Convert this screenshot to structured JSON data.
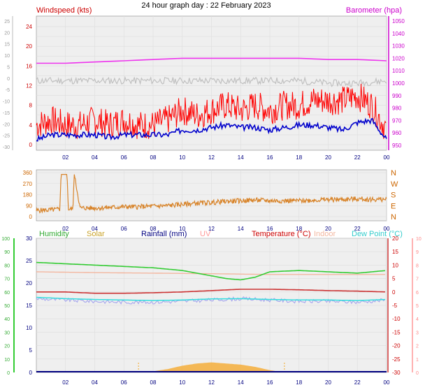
{
  "title": "24 hour graph day : 22 February 2023",
  "time_ticks": [
    "02",
    "04",
    "06",
    "08",
    "10",
    "12",
    "14",
    "16",
    "18",
    "20",
    "22",
    "00"
  ],
  "colors": {
    "wind_gust": "#ff0000",
    "wind_avg": "#0000cc",
    "wind_temp_gray": "#c0c0c0",
    "barometer": "#ee33ee",
    "direction": "#d8842a",
    "humidity": "#33cc33",
    "solar": "#f5a623",
    "rainfall": "#000080",
    "uv": "#ff9999",
    "temperature": "#cc3333",
    "indoor": "#f3b7a0",
    "dewpoint": "#33dddd",
    "apparent": "#aaaaee"
  },
  "chart_data": [
    {
      "type": "line",
      "panel": "wind",
      "labels": {
        "left": "Windspeed (kts)",
        "right": "Barometer (hpa)"
      },
      "left_ticks": [
        "24",
        "20",
        "16",
        "12",
        "8",
        "4",
        "0"
      ],
      "left_outer_ticks": [
        "25",
        "20",
        "15",
        "10",
        "5",
        "0",
        "-5",
        "-10",
        "-15",
        "-20",
        "-25",
        "-30"
      ],
      "right_ticks": [
        "1050",
        "1040",
        "1030",
        "1020",
        "1010",
        "1000",
        "990",
        "980",
        "970",
        "960",
        "950"
      ],
      "ylim_wind": [
        0,
        25
      ],
      "ylim_baro": [
        950,
        1050
      ],
      "x_hours": [
        0,
        24
      ],
      "series": [
        {
          "key": "wind_gust",
          "x": [
            0,
            1,
            2,
            3,
            4,
            5,
            6,
            7,
            8,
            9,
            10,
            11,
            12,
            13,
            14,
            15,
            16,
            17,
            18,
            19,
            20,
            21,
            22,
            23,
            24
          ],
          "values": [
            4,
            5,
            4,
            4,
            5,
            4,
            5,
            4,
            4,
            5,
            7,
            6,
            7,
            8,
            7,
            8,
            7,
            8,
            8,
            9,
            9,
            9,
            10,
            8,
            3
          ]
        },
        {
          "key": "wind_avg",
          "x": [
            0,
            1,
            2,
            3,
            4,
            5,
            6,
            7,
            8,
            9,
            10,
            11,
            12,
            13,
            14,
            15,
            16,
            17,
            18,
            19,
            20,
            21,
            22,
            23,
            24
          ],
          "values": [
            1,
            2,
            2,
            2,
            2,
            1.5,
            2,
            2,
            2,
            2,
            3,
            3,
            3.5,
            4,
            3.5,
            3.5,
            3,
            3.5,
            4,
            4,
            3.5,
            3,
            4.5,
            5,
            1
          ]
        },
        {
          "key": "barometer",
          "x": [
            0,
            2,
            4,
            6,
            8,
            10,
            12,
            14,
            16,
            18,
            20,
            22,
            24
          ],
          "values": [
            1016,
            1016,
            1017,
            1018,
            1019,
            1020,
            1020,
            1020,
            1020,
            1020,
            1019,
            1019,
            1018
          ]
        },
        {
          "key": "wind_temp_gray",
          "x": [
            0,
            2,
            4,
            6,
            8,
            10,
            12,
            14,
            16,
            18,
            20,
            22,
            24
          ],
          "values": [
            13,
            13,
            13,
            13,
            13,
            13,
            13,
            13,
            13,
            13,
            12.5,
            12.5,
            13
          ]
        }
      ]
    },
    {
      "type": "line",
      "panel": "direction",
      "left_ticks": [
        "360",
        "270",
        "180",
        "90",
        "0"
      ],
      "right_ticks": [
        "N",
        "W",
        "S",
        "E",
        "N"
      ],
      "ylim": [
        0,
        360
      ],
      "series": [
        {
          "key": "direction",
          "x": [
            0,
            1,
            1.6,
            1.7,
            2.1,
            2.2,
            2.5,
            2.6,
            3,
            4,
            5,
            6,
            7,
            8,
            9,
            10,
            11,
            12,
            13,
            14,
            15,
            16,
            17,
            18,
            19,
            20,
            21,
            22,
            23,
            24
          ],
          "values": [
            50,
            55,
            60,
            345,
            345,
            60,
            60,
            345,
            70,
            70,
            75,
            80,
            80,
            85,
            90,
            100,
            110,
            115,
            125,
            130,
            135,
            130,
            130,
            130,
            135,
            140,
            140,
            145,
            140,
            140
          ]
        }
      ]
    },
    {
      "type": "line",
      "panel": "temperature",
      "legend": [
        "Humidity",
        "Solar",
        "Rainfall (mm)",
        "UV",
        "Temperature (°C)",
        "Indoor",
        "Dew Point (°C)"
      ],
      "left_outer_ticks": [
        "100",
        "90",
        "80",
        "70",
        "60",
        "50",
        "40",
        "30",
        "20",
        "10",
        "0"
      ],
      "left_inner_ticks": [
        "30",
        "25",
        "20",
        "15",
        "10",
        "5",
        "0"
      ],
      "right_inner_ticks": [
        "20",
        "15",
        "10",
        "5",
        "0",
        "-5",
        "-10",
        "-15",
        "-20",
        "-25",
        "-30"
      ],
      "right_outer_ticks": [
        "10",
        "9",
        "8",
        "7",
        "6",
        "5",
        "4",
        "3",
        "2",
        "1",
        "0"
      ],
      "ylim_temp": [
        -30,
        20
      ],
      "series": [
        {
          "key": "humidity",
          "x": [
            0,
            2,
            4,
            6,
            8,
            10,
            12,
            13,
            14,
            15,
            16,
            18,
            20,
            22,
            24
          ],
          "values": [
            82,
            81,
            80,
            79,
            78,
            76,
            72,
            70,
            69,
            71,
            75,
            76,
            75,
            74,
            76
          ]
        },
        {
          "key": "indoor",
          "x": [
            0,
            4,
            8,
            12,
            16,
            20,
            24
          ],
          "values": [
            7.5,
            7.2,
            7,
            6.8,
            6.5,
            6.5,
            6.5
          ]
        },
        {
          "key": "temperature",
          "x": [
            0,
            2,
            4,
            6,
            8,
            10,
            12,
            14,
            16,
            18,
            20,
            22,
            24
          ],
          "values": [
            0,
            0,
            -0.5,
            -0.5,
            -0.3,
            0,
            0.5,
            1,
            1,
            0.8,
            0.5,
            0.3,
            0
          ]
        },
        {
          "key": "dewpoint",
          "x": [
            0,
            2,
            4,
            6,
            8,
            10,
            12,
            14,
            16,
            18,
            20,
            22,
            24
          ],
          "values": [
            -2,
            -2.5,
            -2.8,
            -3,
            -3.2,
            -3,
            -2.6,
            -2.5,
            -2.8,
            -3,
            -3,
            -3.2,
            -2.8
          ]
        },
        {
          "key": "apparent",
          "x": [
            0,
            2,
            4,
            6,
            8,
            10,
            12,
            14,
            16,
            18,
            20,
            22,
            24
          ],
          "values": [
            -2.5,
            -3,
            -3.5,
            -3.8,
            -3.8,
            -3.5,
            -3,
            -2.5,
            -3,
            -3.5,
            -3.5,
            -3.8,
            -3
          ]
        },
        {
          "key": "solar",
          "x": [
            7,
            8,
            9,
            10,
            11,
            12,
            13,
            14,
            15,
            16,
            17
          ],
          "values": [
            0,
            1,
            3,
            6,
            8,
            9,
            8,
            7,
            5,
            2,
            0
          ]
        }
      ]
    }
  ]
}
